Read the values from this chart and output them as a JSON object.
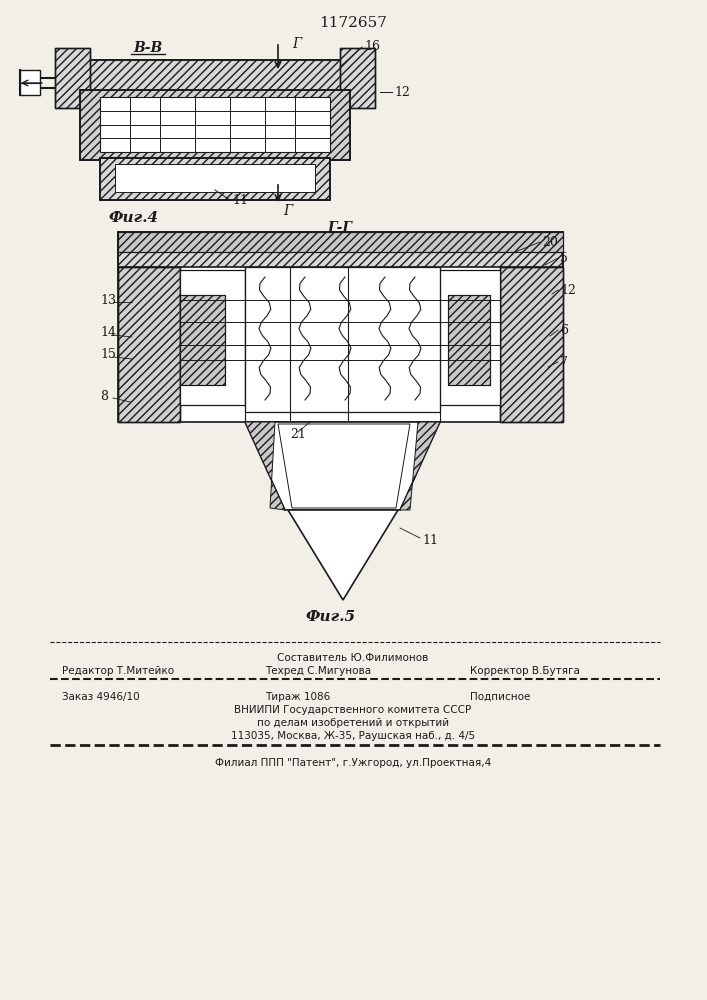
{
  "title": "1172657",
  "title_fontsize": 11,
  "bg_color": "#f2efe8",
  "line_color": "#1a1a1a",
  "fig4_label": "Фиг.4",
  "fig5_label": "Фиг.5",
  "section_bb": "В-В",
  "section_gg": "Г-Г",
  "footer_line1_center_top": "Составитель Ю.Филимонов",
  "footer_line1_left": "Редактор Т.Митейко",
  "footer_line1_center": "Техред С.Мигунова",
  "footer_line1_right": "Корректор В.Бутяга",
  "footer_line2_left": "Заказ 4946/10",
  "footer_line2_center": "Тираж 1086",
  "footer_line2_right": "Подписное",
  "footer_line3": "ВНИИПИ Государственного комитета СССР",
  "footer_line4": "по делам изобретений и открытий",
  "footer_line5": "113035, Москва, Ж-35, Раушская наб., д. 4/5",
  "footer_line6": "Филиал ППП \"Патент\", г.Ужгород, ул.Проектная,4",
  "arrow_g_label": "Г"
}
